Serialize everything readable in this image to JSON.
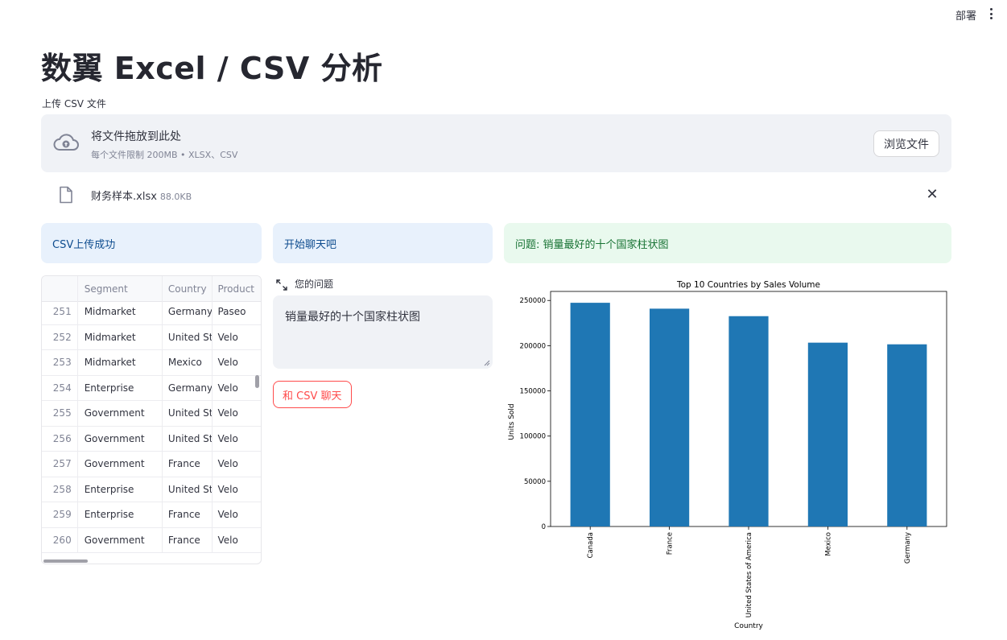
{
  "header": {
    "deploy_label": "部署"
  },
  "page": {
    "title": "数翼 Excel / CSV 分析"
  },
  "upload": {
    "label": "上传 CSV 文件",
    "drop_text": "将文件拖放到此处",
    "limit_text": "每个文件限制 200MB • XLSX、CSV",
    "browse_label": "浏览文件"
  },
  "file": {
    "name": "财务样本.xlsx",
    "size": "88.0KB"
  },
  "boxes": {
    "success": "CSV上传成功",
    "chat_start": "开始聊天吧",
    "question": "问题: 销量最好的十个国家柱状图"
  },
  "table": {
    "columns": [
      "Segment",
      "Country",
      "Product"
    ],
    "rows": [
      {
        "idx": "251",
        "segment": "Midmarket",
        "country": "Germany",
        "product": "Paseo"
      },
      {
        "idx": "252",
        "segment": "Midmarket",
        "country": "United Sta",
        "product": "Velo"
      },
      {
        "idx": "253",
        "segment": "Midmarket",
        "country": "Mexico",
        "product": "Velo"
      },
      {
        "idx": "254",
        "segment": "Enterprise",
        "country": "Germany",
        "product": "Velo"
      },
      {
        "idx": "255",
        "segment": "Government",
        "country": "United Sta",
        "product": "Velo"
      },
      {
        "idx": "256",
        "segment": "Government",
        "country": "United Sta",
        "product": "Velo"
      },
      {
        "idx": "257",
        "segment": "Government",
        "country": "France",
        "product": "Velo"
      },
      {
        "idx": "258",
        "segment": "Enterprise",
        "country": "United Sta",
        "product": "Velo"
      },
      {
        "idx": "259",
        "segment": "Enterprise",
        "country": "France",
        "product": "Velo"
      },
      {
        "idx": "260",
        "segment": "Government",
        "country": "France",
        "product": "Velo"
      }
    ]
  },
  "question": {
    "label": "您的问题",
    "value": "销量最好的十个国家柱状图"
  },
  "chat_button": "和 CSV 聊天",
  "colors": {
    "bar": "#1f77b4",
    "accent": "#ff4b4b"
  },
  "icons": {
    "upload": "cloud-upload-icon",
    "file": "file-icon",
    "close": "close-icon",
    "expand": "expand-icon",
    "menu": "kebab-menu-icon"
  },
  "chart_data": {
    "type": "bar",
    "title": "Top 10 Countries by Sales Volume",
    "xlabel": "Country",
    "ylabel": "Units Sold",
    "categories": [
      "Canada",
      "France",
      "United States of America",
      "Mexico",
      "Germany"
    ],
    "values": [
      247430,
      240932,
      232628,
      203325,
      201494
    ],
    "yticks": [
      "0",
      "50000",
      "100000",
      "150000",
      "200000",
      "250000"
    ],
    "ylim": [
      0,
      260000
    ],
    "grid": false
  }
}
